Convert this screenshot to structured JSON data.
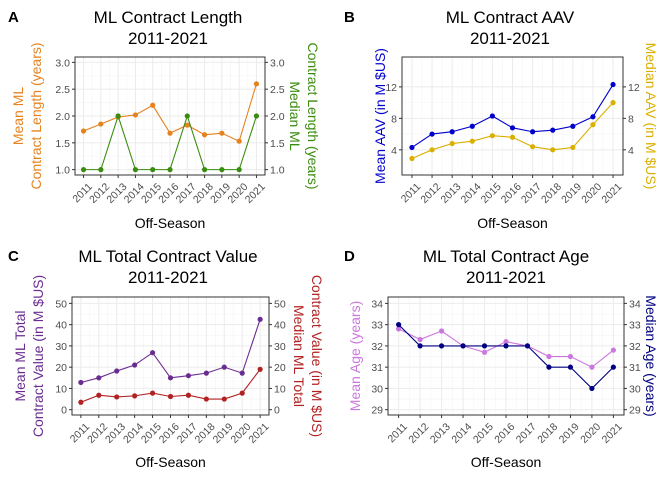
{
  "chart_data": [
    {
      "panel": "A",
      "type": "line",
      "title": [
        "ML Contract Length",
        "2011-2021"
      ],
      "xlabel": "Off-Season",
      "categories": [
        "2011",
        "2012",
        "2013",
        "2014",
        "2015",
        "2016",
        "2017",
        "2018",
        "2019",
        "2020",
        "2021"
      ],
      "left_axis": {
        "label": [
          "Mean ML",
          "Contract Length (years)"
        ],
        "color": "#E6821E",
        "lim": [
          0.9,
          3.1
        ],
        "ticks": [
          1.0,
          1.5,
          2.0,
          2.5,
          3.0
        ],
        "tick_labels": [
          "1.0",
          "1.5",
          "2.0",
          "2.5",
          "3.0"
        ]
      },
      "right_axis": {
        "label": [
          "Median ML",
          "Contract Length (years)"
        ],
        "color": "#3A8C0E",
        "lim": [
          0.9,
          3.1
        ],
        "ticks": [
          1.0,
          1.5,
          2.0,
          2.5,
          3.0
        ],
        "tick_labels": [
          "1.0",
          "1.5",
          "2.0",
          "2.5",
          "3.0"
        ]
      },
      "series": [
        {
          "axis": "left",
          "color": "#E6821E",
          "values": [
            1.72,
            1.85,
            1.98,
            2.02,
            2.2,
            1.68,
            1.83,
            1.65,
            1.68,
            1.53,
            2.6
          ]
        },
        {
          "axis": "right",
          "color": "#3A8C0E",
          "values": [
            1,
            1,
            2,
            1,
            1,
            1,
            2,
            1,
            1,
            1,
            2
          ]
        }
      ]
    },
    {
      "panel": "B",
      "type": "line",
      "title": [
        "ML Contract AAV",
        "2011-2021"
      ],
      "xlabel": "Off-Season",
      "categories": [
        "2011",
        "2012",
        "2013",
        "2014",
        "2015",
        "2016",
        "2017",
        "2018",
        "2019",
        "2020",
        "2021"
      ],
      "left_axis": {
        "label": [
          "Mean AAV (in M $US)"
        ],
        "color": "#0000CD",
        "lim": [
          0.8,
          15.8
        ],
        "ticks": [
          4,
          8,
          12
        ],
        "tick_labels": [
          "4",
          "8",
          "12"
        ]
      },
      "right_axis": {
        "label": [
          "Median AAV (in M $US)"
        ],
        "color": "#DAB000",
        "lim": [
          0.8,
          15.8
        ],
        "ticks": [
          4,
          8,
          12
        ],
        "tick_labels": [
          "4",
          "8",
          "12"
        ]
      },
      "series": [
        {
          "axis": "left",
          "color": "#0000CD",
          "values": [
            4.3,
            6.0,
            6.3,
            7.0,
            8.3,
            6.8,
            6.3,
            6.5,
            7.0,
            8.2,
            12.3
          ]
        },
        {
          "axis": "right",
          "color": "#DAB000",
          "values": [
            2.9,
            4.0,
            4.8,
            5.1,
            5.8,
            5.6,
            4.4,
            4.0,
            4.3,
            7.2,
            10.0
          ]
        }
      ]
    },
    {
      "panel": "C",
      "type": "line",
      "title": [
        "ML Total Contract Value",
        "2011-2021"
      ],
      "xlabel": "Off-Season",
      "categories": [
        "2011",
        "2012",
        "2013",
        "2014",
        "2015",
        "2016",
        "2017",
        "2018",
        "2019",
        "2020",
        "2021"
      ],
      "left_axis": {
        "label": [
          "Mean ML Total",
          "Contract Value (in M $US)"
        ],
        "color": "#6A2C91",
        "lim": [
          -2.5,
          53
        ],
        "ticks": [
          0,
          10,
          20,
          30,
          40,
          50
        ],
        "tick_labels": [
          "0",
          "10",
          "20",
          "30",
          "40",
          "50"
        ]
      },
      "right_axis": {
        "label": [
          "Median ML Total",
          "Contract Value (in M $US)"
        ],
        "color": "#B22222",
        "lim": [
          -2.5,
          53
        ],
        "ticks": [
          0,
          10,
          20,
          30,
          40,
          50
        ],
        "tick_labels": [
          "0",
          "10",
          "20",
          "30",
          "40",
          "50"
        ]
      },
      "series": [
        {
          "axis": "left",
          "color": "#6A2C91",
          "values": [
            12.8,
            15.0,
            18.2,
            21.0,
            26.8,
            15.0,
            16.0,
            17.2,
            20.0,
            17.2,
            42.5
          ]
        },
        {
          "axis": "right",
          "color": "#B22222",
          "values": [
            3.5,
            6.8,
            6.0,
            6.5,
            7.8,
            6.2,
            6.8,
            5.0,
            5.0,
            7.8,
            19.0
          ]
        }
      ]
    },
    {
      "panel": "D",
      "type": "line",
      "title": [
        "ML Total Contract Age",
        "2011-2021"
      ],
      "xlabel": "Off-Season",
      "categories": [
        "2011",
        "2012",
        "2013",
        "2014",
        "2015",
        "2016",
        "2017",
        "2018",
        "2019",
        "2020",
        "2021"
      ],
      "left_axis": {
        "label": [
          "Mean Age (years)"
        ],
        "color": "#CC77DD",
        "lim": [
          28.75,
          34.3
        ],
        "ticks": [
          29,
          30,
          31,
          32,
          33,
          34
        ],
        "tick_labels": [
          "29",
          "30",
          "31",
          "32",
          "33",
          "34"
        ]
      },
      "right_axis": {
        "label": [
          "Median Age (years)"
        ],
        "color": "#000080",
        "lim": [
          28.75,
          34.3
        ],
        "ticks": [
          29,
          30,
          31,
          32,
          33,
          34
        ],
        "tick_labels": [
          "29",
          "30",
          "31",
          "32",
          "33",
          "34"
        ]
      },
      "series": [
        {
          "axis": "left",
          "color": "#CC77DD",
          "values": [
            32.8,
            32.3,
            32.7,
            32.0,
            31.7,
            32.2,
            32.0,
            31.5,
            31.5,
            31.0,
            31.8
          ]
        },
        {
          "axis": "right",
          "color": "#000080",
          "values": [
            33,
            32,
            32,
            32,
            32,
            32,
            32,
            31,
            31,
            30,
            31
          ]
        }
      ]
    }
  ]
}
